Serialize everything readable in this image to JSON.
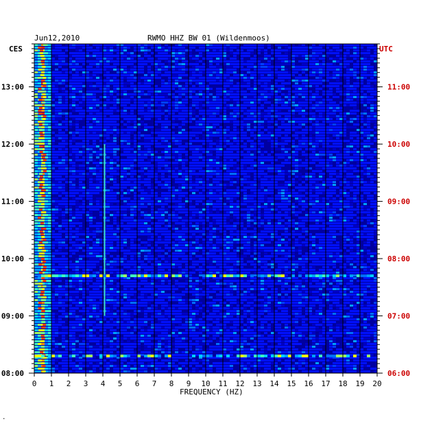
{
  "header": {
    "date": "Jun12,2010",
    "station": "RWMO HHZ BW 01 (Wildenmoos)",
    "left_tz": "CES",
    "right_tz": "UTC"
  },
  "footer": {
    "mark": "."
  },
  "chart_data": {
    "type": "heatmap",
    "title": "RWMO HHZ BW 01 (Wildenmoos)",
    "xlabel": "FREQUENCY (HZ)",
    "xlim": [
      0,
      20
    ],
    "x_ticks": [
      "0",
      "1",
      "2",
      "3",
      "4",
      "5",
      "6",
      "7",
      "8",
      "9",
      "10",
      "11",
      "12",
      "13",
      "14",
      "15",
      "16",
      "17",
      "18",
      "19",
      "20"
    ],
    "y_ticks_left": [
      "13:00",
      "12:00",
      "11:00",
      "10:00",
      "09:00",
      "08:00"
    ],
    "y_ticks_right": [
      "11:00",
      "10:00",
      "09:00",
      "08:00",
      "07:00",
      "06:00"
    ],
    "y_tick_hours_left": [
      13,
      12,
      11,
      10,
      9,
      8
    ],
    "ylim_hours_left": [
      8,
      13.75
    ],
    "grid": true,
    "colors": {
      "background": "#0000a0",
      "right_labels": "#cc0000"
    },
    "features": [
      {
        "name": "low-frequency band",
        "freq_hz": [
          0.2,
          0.9
        ],
        "intensity": "high"
      },
      {
        "name": "4 Hz line",
        "freq_hz": 4.1,
        "hours_left": [
          9.0,
          12.0
        ]
      },
      {
        "name": "broadband burst",
        "hours_left": 8.3,
        "freq_hz": [
          0,
          20
        ]
      },
      {
        "name": "broadband burst",
        "hours_left": 9.7,
        "freq_hz": [
          0,
          20
        ]
      }
    ]
  }
}
